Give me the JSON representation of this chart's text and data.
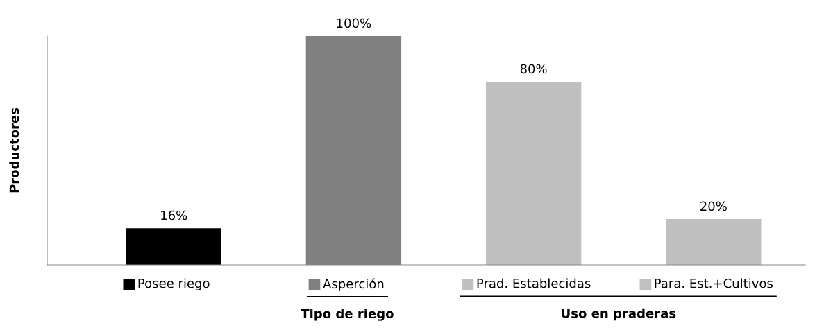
{
  "chart_data": {
    "type": "bar",
    "ylabel": "Productores",
    "categories": [
      "Posee riego",
      "Asperción",
      "Prad. Establecidas",
      "Para. Est.+Cultivos"
    ],
    "values": [
      16,
      100,
      80,
      20
    ],
    "colors": [
      "#000000",
      "#808080",
      "#c0c0c0",
      "#c0c0c0"
    ],
    "value_labels": [
      "16%",
      "100%",
      "80%",
      "20%"
    ],
    "annotations": [
      "Tipo de riego",
      "Uso en praderas"
    ]
  }
}
